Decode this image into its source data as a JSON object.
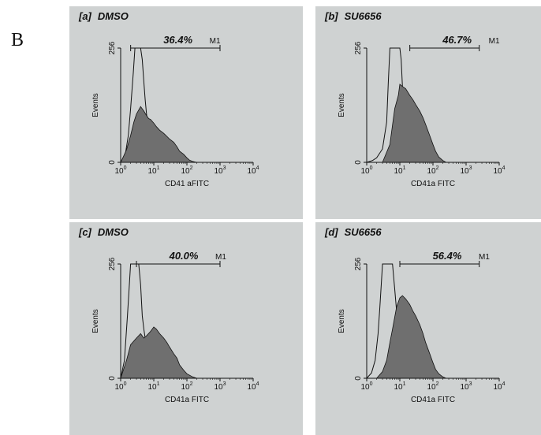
{
  "figure_label": "B",
  "chart_data": [
    {
      "type": "area",
      "panel_label": "[a]",
      "treatment": "DMSO",
      "xlabel": "CD41 aFITC",
      "ylabel": "Events",
      "x_scale": "log",
      "xlim": [
        1,
        10000
      ],
      "ylim": [
        0,
        256
      ],
      "y_tick_labels": [
        "0",
        "256"
      ],
      "x_tick_labels": [
        "10^0",
        "10^1",
        "10^2",
        "10^3",
        "10^4"
      ],
      "marker": {
        "name": "M1",
        "percent": "36.4%",
        "range": [
          2,
          1000
        ]
      },
      "series": [
        {
          "style": "outline",
          "fill": "none",
          "x": [
            1,
            1.4,
            1.7,
            2,
            2.4,
            2.7,
            3,
            3.5,
            4,
            4.5,
            5,
            5.5,
            6,
            7,
            8,
            10,
            12,
            16,
            20,
            30
          ],
          "y": [
            0,
            20,
            60,
            120,
            200,
            256,
            256,
            256,
            256,
            230,
            180,
            140,
            110,
            70,
            40,
            22,
            12,
            6,
            3,
            0
          ]
        },
        {
          "style": "filled",
          "fill": "#6f6f6f",
          "x": [
            1,
            1.2,
            1.5,
            2,
            2.5,
            3,
            4,
            5,
            6,
            7,
            8,
            10,
            12,
            15,
            20,
            25,
            30,
            40,
            50,
            60,
            80,
            100,
            120,
            150,
            200
          ],
          "y": [
            0,
            12,
            28,
            60,
            90,
            108,
            125,
            115,
            105,
            98,
            96,
            88,
            80,
            72,
            65,
            58,
            52,
            45,
            35,
            25,
            18,
            10,
            5,
            2,
            0
          ]
        }
      ]
    },
    {
      "type": "area",
      "panel_label": "[b]",
      "treatment": "SU6656",
      "xlabel": "CD41a FITC",
      "ylabel": "Events",
      "x_scale": "log",
      "xlim": [
        1,
        10000
      ],
      "ylim": [
        0,
        256
      ],
      "y_tick_labels": [
        "0",
        "256"
      ],
      "x_tick_labels": [
        "10^0",
        "10^1",
        "10^2",
        "10^3",
        "10^4"
      ],
      "marker": {
        "name": "M1",
        "percent": "46.7%",
        "range": [
          20,
          2500
        ]
      },
      "series": [
        {
          "style": "outline",
          "fill": "none",
          "x": [
            1,
            1.5,
            2,
            3,
            4,
            4.5,
            5,
            6,
            8,
            10,
            11,
            12,
            14,
            16,
            20,
            25,
            30,
            40,
            50
          ],
          "y": [
            0,
            4,
            10,
            30,
            90,
            180,
            256,
            256,
            256,
            256,
            230,
            170,
            110,
            75,
            40,
            20,
            10,
            3,
            0
          ]
        },
        {
          "style": "filled",
          "fill": "#6f6f6f",
          "x": [
            3,
            5,
            7,
            9,
            10,
            12,
            15,
            20,
            25,
            30,
            40,
            50,
            60,
            80,
            100,
            120,
            150,
            200,
            250
          ],
          "y": [
            0,
            40,
            120,
            150,
            175,
            170,
            165,
            150,
            140,
            130,
            115,
            100,
            85,
            60,
            40,
            25,
            12,
            4,
            0
          ]
        }
      ]
    },
    {
      "type": "area",
      "panel_label": "[c]",
      "treatment": "DMSO",
      "xlabel": "CD41a FITC",
      "ylabel": "Events",
      "x_scale": "log",
      "xlim": [
        1,
        10000
      ],
      "ylim": [
        0,
        256
      ],
      "y_tick_labels": [
        "0",
        "256"
      ],
      "x_tick_labels": [
        "10^0",
        "10^1",
        "10^2",
        "10^3",
        "10^4"
      ],
      "marker": {
        "name": "M1",
        "percent": "40.0%",
        "range": [
          3,
          1000
        ]
      },
      "series": [
        {
          "style": "outline",
          "fill": "none",
          "x": [
            1,
            1.3,
            1.6,
            1.8,
            2,
            2.5,
            3,
            3.5,
            4,
            4.5,
            5,
            6,
            7,
            8,
            10,
            12,
            15,
            20
          ],
          "y": [
            0,
            40,
            140,
            200,
            256,
            256,
            256,
            256,
            210,
            140,
            110,
            70,
            40,
            20,
            8,
            4,
            2,
            0
          ]
        },
        {
          "style": "filled",
          "fill": "#6f6f6f",
          "x": [
            1,
            1.5,
            2,
            3,
            4,
            5,
            6,
            8,
            10,
            12,
            15,
            20,
            25,
            30,
            40,
            50,
            60,
            80,
            100,
            150,
            200
          ],
          "y": [
            0,
            40,
            75,
            90,
            100,
            90,
            95,
            105,
            115,
            110,
            100,
            90,
            80,
            70,
            55,
            45,
            30,
            18,
            10,
            3,
            0
          ]
        }
      ]
    },
    {
      "type": "area",
      "panel_label": "[d]",
      "treatment": "SU6656",
      "xlabel": "CD41a FITC",
      "ylabel": "Events",
      "x_scale": "log",
      "xlim": [
        1,
        10000
      ],
      "ylim": [
        0,
        256
      ],
      "y_tick_labels": [
        "0",
        "256"
      ],
      "x_tick_labels": [
        "10^0",
        "10^1",
        "10^2",
        "10^3",
        "10^4"
      ],
      "marker": {
        "name": "M1",
        "percent": "56.4%",
        "range": [
          10,
          2500
        ]
      },
      "series": [
        {
          "style": "outline",
          "fill": "none",
          "x": [
            1,
            1.4,
            1.8,
            2.2,
            2.5,
            2.8,
            3,
            4,
            5,
            6,
            7,
            8,
            10,
            12,
            15,
            20,
            25,
            30
          ],
          "y": [
            0,
            12,
            40,
            100,
            160,
            220,
            256,
            256,
            256,
            256,
            200,
            150,
            100,
            60,
            30,
            12,
            5,
            0
          ]
        },
        {
          "style": "filled",
          "fill": "#6f6f6f",
          "x": [
            2,
            3,
            4,
            5,
            6,
            8,
            10,
            12,
            15,
            20,
            25,
            30,
            40,
            50,
            60,
            80,
            100,
            120,
            150,
            200,
            250
          ],
          "y": [
            0,
            15,
            40,
            80,
            110,
            160,
            180,
            185,
            178,
            165,
            150,
            140,
            120,
            100,
            80,
            55,
            35,
            20,
            10,
            3,
            0
          ]
        }
      ]
    }
  ]
}
